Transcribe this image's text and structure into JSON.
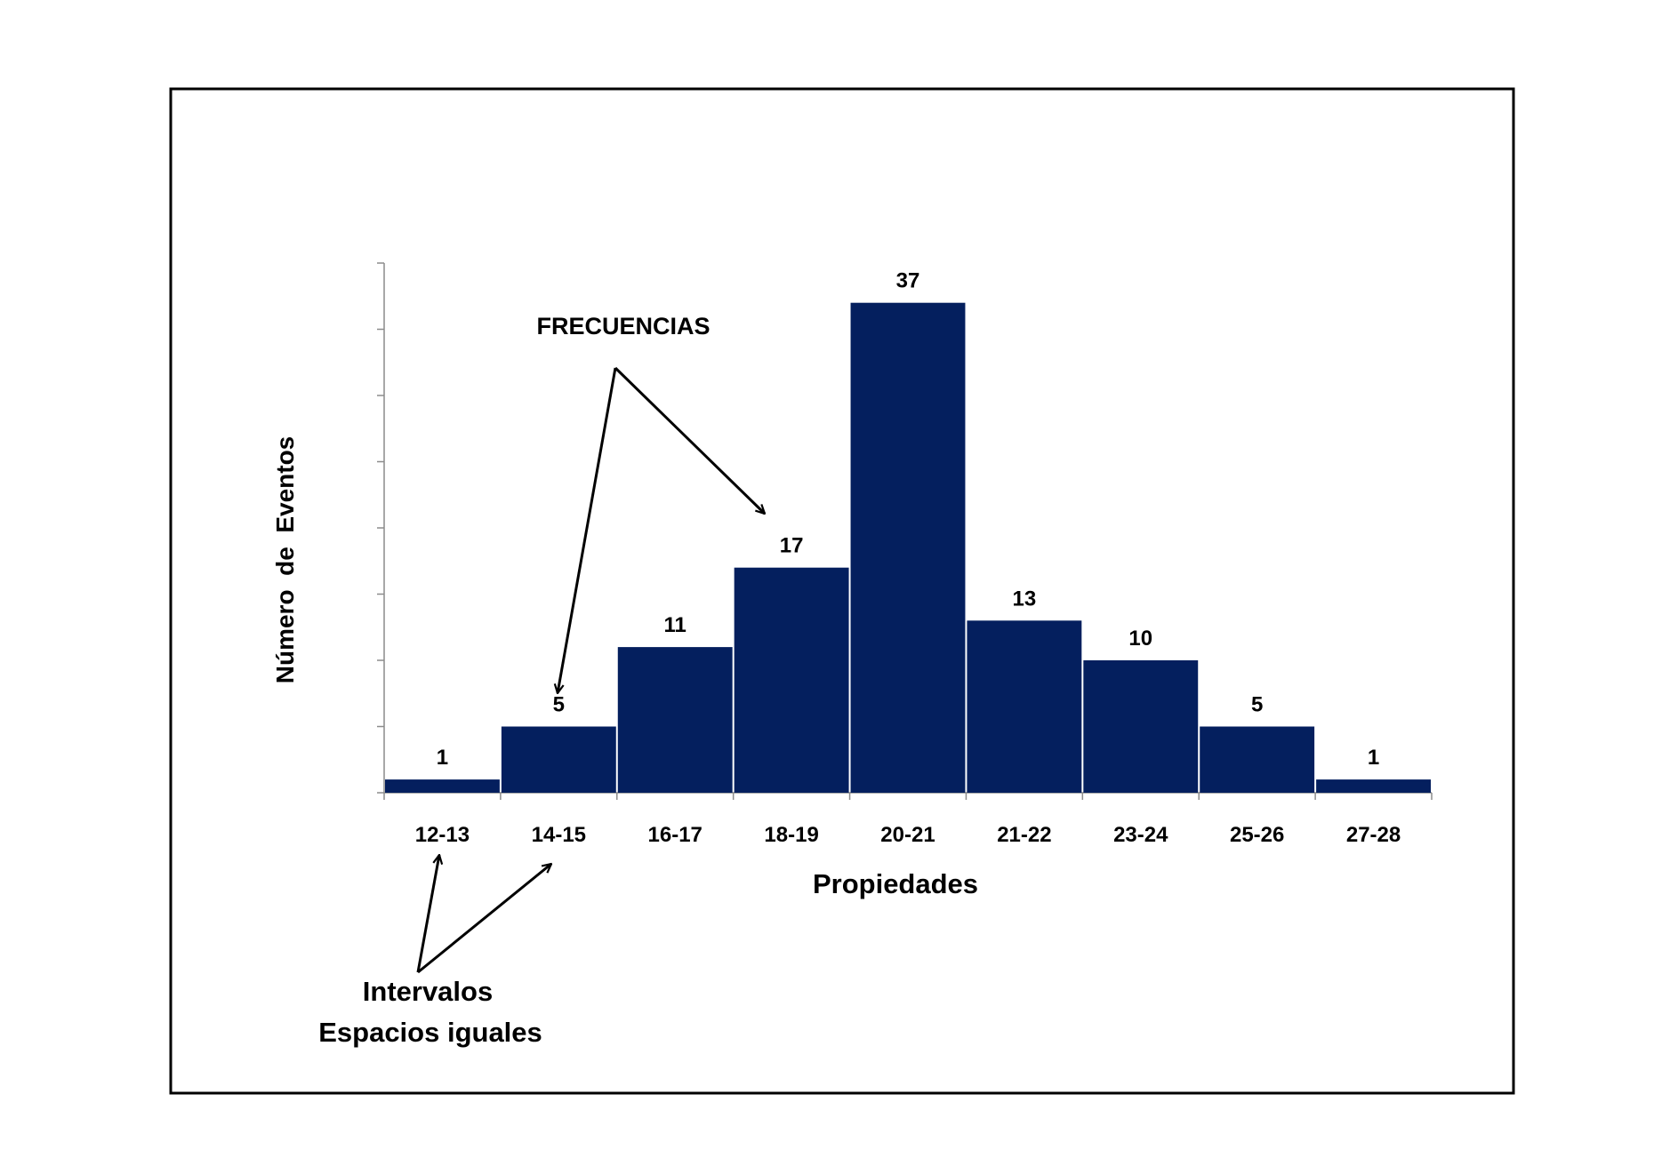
{
  "chart_data": {
    "type": "bar",
    "title": "",
    "xlabel": "Propiedades",
    "ylabel": "Número  de  Eventos",
    "categories": [
      "12-13",
      "14-15",
      "16-17",
      "18-19",
      "20-21",
      "21-22",
      "23-24",
      "25-26",
      "27-28"
    ],
    "values": [
      1,
      5,
      11,
      17,
      37,
      13,
      10,
      5,
      1
    ],
    "data_labels": [
      "1",
      "5",
      "11",
      "17",
      "37",
      "13",
      "10",
      "5",
      "1"
    ],
    "ylim": [
      0,
      40
    ],
    "y_tick_step": 5,
    "y_tick_labels_shown": false,
    "grid": false,
    "bar_color": "#041F5E",
    "annotations": {
      "frequencies": "FRECUENCIAS",
      "intervals_line1": "Intervalos",
      "intervals_line2": "Espacios iguales"
    }
  }
}
